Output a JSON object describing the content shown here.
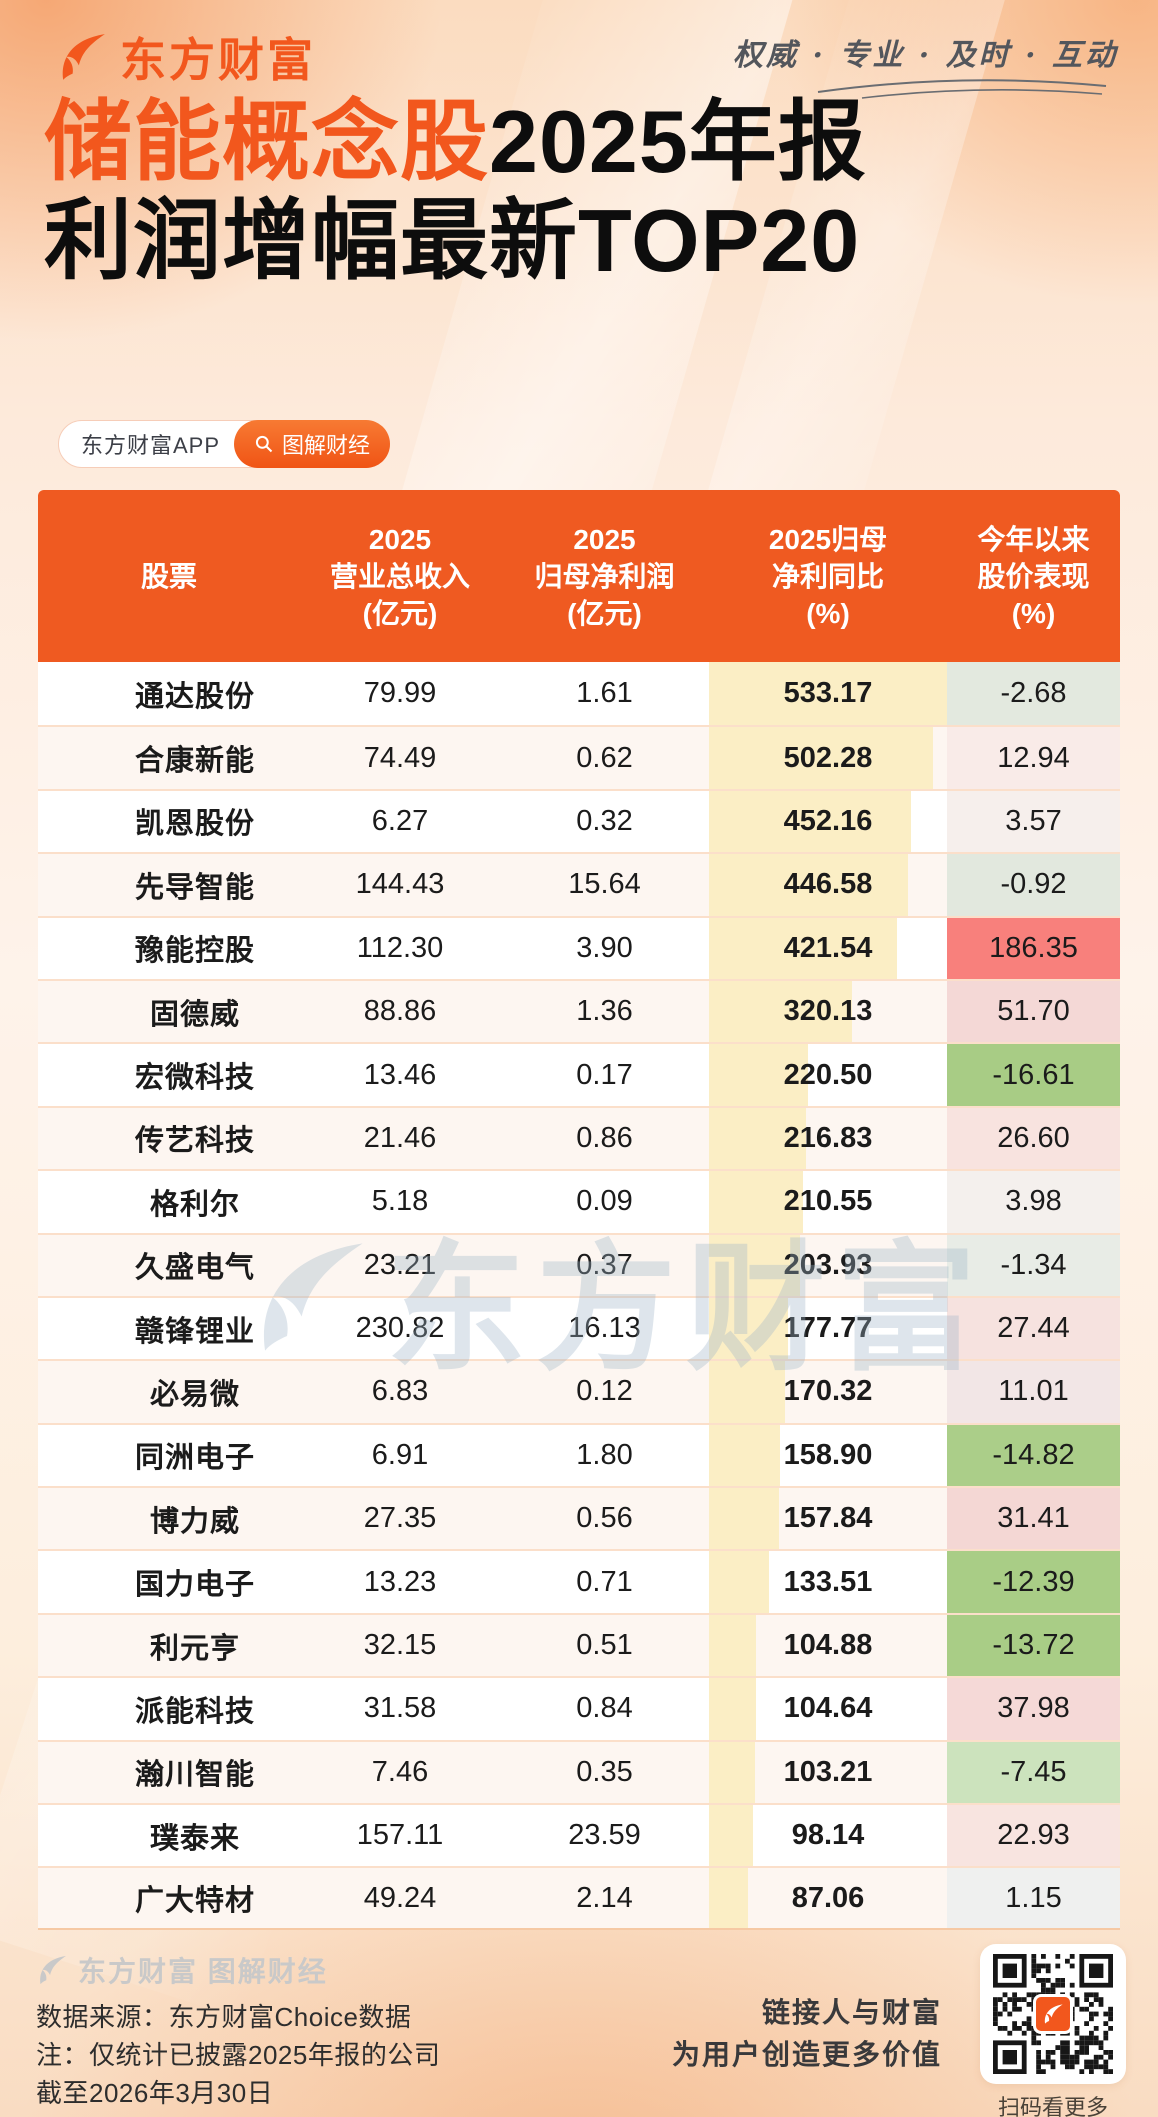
{
  "brand": {
    "logo_text": "东方财富",
    "slogan": "权威 · 专业 · 及时 · 互动",
    "app_badge": "东方财富APP",
    "channel_badge": "图解财经"
  },
  "title": {
    "highlight": "储能概念股",
    "suffix": "2025年报",
    "line2": "利润增幅最新TOP20"
  },
  "watermark_text": "东方财富",
  "chart_data": {
    "type": "table",
    "title": "储能概念股2025年报利润增幅最新TOP20",
    "columns": [
      "股票",
      "2025营业总收入(亿元)",
      "2025归母净利润(亿元)",
      "2025归母净利同比(%)",
      "今年以来股价表现(%)"
    ],
    "column_headers_display": [
      "股票",
      "2025\n营业总收入\n(亿元)",
      "2025\n归母净利润\n(亿元)",
      "2025归母\n净利同比\n(%)",
      "今年以来\n股价表现\n(%)"
    ],
    "header_bg": "#ef5a21",
    "bar_column": "2025归母净利同比(%)",
    "bar_color": "#fbeec5",
    "bar_max": 533.17,
    "rows": [
      {
        "name": "通达股份",
        "revenue": "79.99",
        "profit": "1.61",
        "yoy": "533.17",
        "ytd": "-2.68",
        "ytd_bg": "#e3e9df"
      },
      {
        "name": "合康新能",
        "revenue": "74.49",
        "profit": "0.62",
        "yoy": "502.28",
        "ytd": "12.94",
        "ytd_bg": "#f9ebe8"
      },
      {
        "name": "凯恩股份",
        "revenue": "6.27",
        "profit": "0.32",
        "yoy": "452.16",
        "ytd": "3.57",
        "ytd_bg": "#f6efec"
      },
      {
        "name": "先导智能",
        "revenue": "144.43",
        "profit": "15.64",
        "yoy": "446.58",
        "ytd": "-0.92",
        "ytd_bg": "#e2e8de"
      },
      {
        "name": "豫能控股",
        "revenue": "112.30",
        "profit": "3.90",
        "yoy": "421.54",
        "ytd": "186.35",
        "ytd_bg": "#f8807c"
      },
      {
        "name": "固德威",
        "revenue": "88.86",
        "profit": "1.36",
        "yoy": "320.13",
        "ytd": "51.70",
        "ytd_bg": "#f4d8d6"
      },
      {
        "name": "宏微科技",
        "revenue": "13.46",
        "profit": "0.17",
        "yoy": "220.50",
        "ytd": "-16.61",
        "ytd_bg": "#a8cc85"
      },
      {
        "name": "传艺科技",
        "revenue": "21.46",
        "profit": "0.86",
        "yoy": "216.83",
        "ytd": "26.60",
        "ytd_bg": "#f8e3df"
      },
      {
        "name": "格利尔",
        "revenue": "5.18",
        "profit": "0.09",
        "yoy": "210.55",
        "ytd": "3.98",
        "ytd_bg": "#f4f0ed"
      },
      {
        "name": "久盛电气",
        "revenue": "23.21",
        "profit": "0.37",
        "yoy": "203.93",
        "ytd": "-1.34",
        "ytd_bg": "#e8ece6"
      },
      {
        "name": "赣锋锂业",
        "revenue": "230.82",
        "profit": "16.13",
        "yoy": "177.77",
        "ytd": "27.44",
        "ytd_bg": "#f6e2df"
      },
      {
        "name": "必易微",
        "revenue": "6.83",
        "profit": "0.12",
        "yoy": "170.32",
        "ytd": "11.01",
        "ytd_bg": "#f2e6e6"
      },
      {
        "name": "同洲电子",
        "revenue": "6.91",
        "profit": "1.80",
        "yoy": "158.90",
        "ytd": "-14.82",
        "ytd_bg": "#abce89"
      },
      {
        "name": "博力威",
        "revenue": "27.35",
        "profit": "0.56",
        "yoy": "157.84",
        "ytd": "31.41",
        "ytd_bg": "#f4d7d4"
      },
      {
        "name": "国力电子",
        "revenue": "13.23",
        "profit": "0.71",
        "yoy": "133.51",
        "ytd": "-12.39",
        "ytd_bg": "#a9cd86"
      },
      {
        "name": "利元亨",
        "revenue": "32.15",
        "profit": "0.51",
        "yoy": "104.88",
        "ytd": "-13.72",
        "ytd_bg": "#a9cd86"
      },
      {
        "name": "派能科技",
        "revenue": "31.58",
        "profit": "0.84",
        "yoy": "104.64",
        "ytd": "37.98",
        "ytd_bg": "#f5d9d7"
      },
      {
        "name": "瀚川智能",
        "revenue": "7.46",
        "profit": "0.35",
        "yoy": "103.21",
        "ytd": "-7.45",
        "ytd_bg": "#cce3bd"
      },
      {
        "name": "璞泰来",
        "revenue": "157.11",
        "profit": "23.59",
        "yoy": "98.14",
        "ytd": "22.93",
        "ytd_bg": "#f8e4e0"
      },
      {
        "name": "广大特材",
        "revenue": "49.24",
        "profit": "2.14",
        "yoy": "87.06",
        "ytd": "1.15",
        "ytd_bg": "#eff0ef"
      }
    ]
  },
  "footer": {
    "brand": "东方财富 图解财经",
    "notes": [
      "数据来源：东方财富Choice数据",
      "注：仅统计已披露2025年报的公司",
      "截至2026年3月30日"
    ],
    "tagline": [
      "链接人与财富",
      "为用户创造更多价值"
    ],
    "qr_caption": "扫码看更多"
  },
  "colors": {
    "accent": "#f2571d",
    "table_header": "#ef5a21",
    "row_alt": "#fdf6f1"
  }
}
